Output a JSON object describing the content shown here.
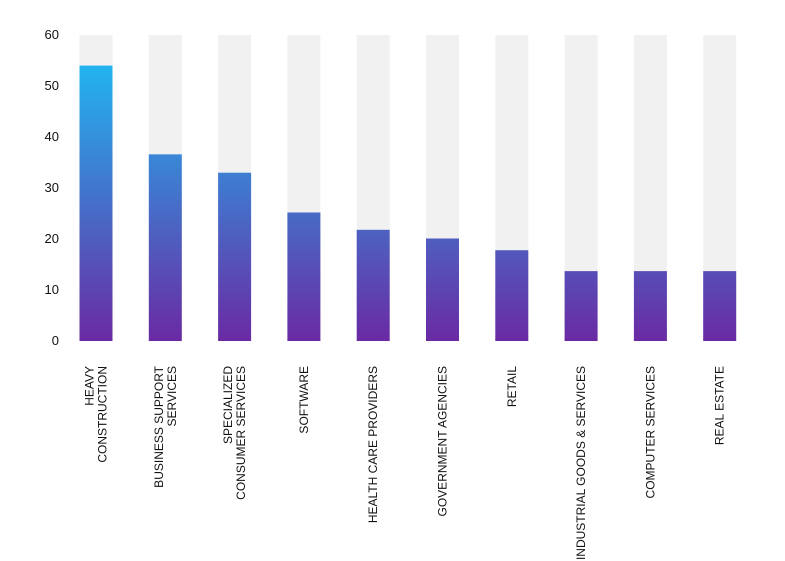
{
  "chart_data": {
    "type": "bar",
    "categories": [
      [
        "HEAVY",
        "CONSTRUCTION"
      ],
      [
        "BUSINESS SUPPORT",
        "SERVICES"
      ],
      [
        "SPECIALIZED",
        "CONSUMER SERVICES"
      ],
      [
        "SOFTWARE"
      ],
      [
        "HEALTH CARE PROVIDERS"
      ],
      [
        "GOVERNMENT AGENCIES"
      ],
      [
        "RETAIL"
      ],
      [
        "INDUSTRIAL GOODS & SERVICES"
      ],
      [
        "COMPUTER SERVICES"
      ],
      [
        "REAL ESTATE"
      ]
    ],
    "values": [
      54,
      36.6,
      33,
      25.2,
      21.8,
      20.1,
      17.8,
      13.7,
      13.7,
      13.7
    ],
    "ylim": [
      0,
      60
    ],
    "yticks": [
      0,
      10,
      20,
      30,
      40,
      50,
      60
    ],
    "background_bar_color": "#f1f1f1",
    "gradient_colors": {
      "top": "#22b3ee",
      "bottom": "#6a2aa3"
    },
    "grid": false,
    "legend": "none"
  }
}
